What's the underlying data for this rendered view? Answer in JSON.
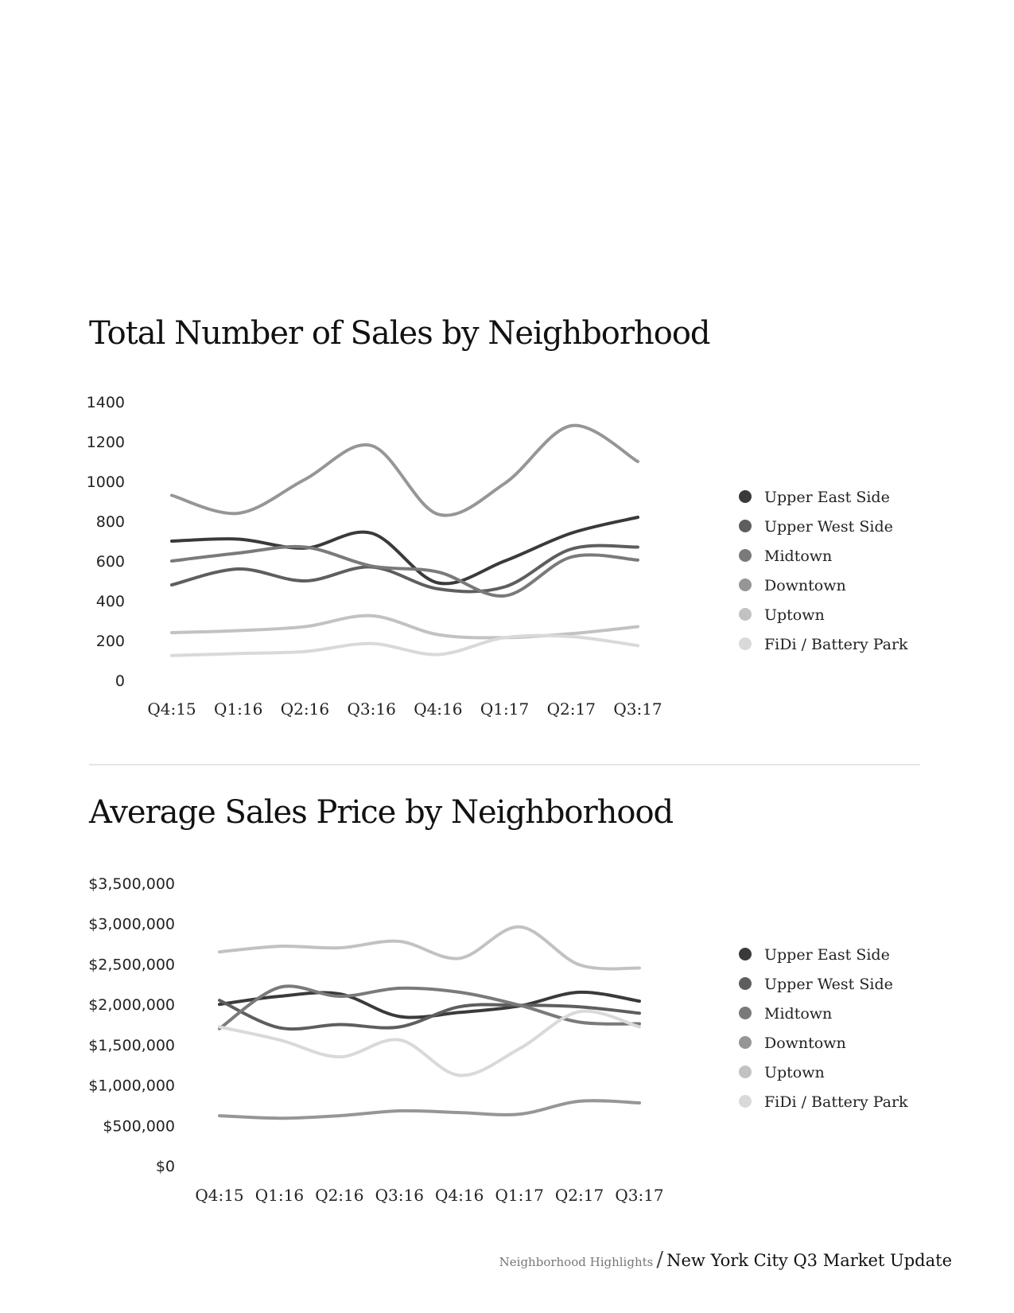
{
  "chart_data": [
    {
      "type": "line",
      "title": "Total Number of Sales by Neighborhood",
      "categories": [
        "Q4:15",
        "Q1:16",
        "Q2:16",
        "Q3:16",
        "Q4:16",
        "Q1:17",
        "Q2:17",
        "Q3:17"
      ],
      "ylim": [
        0,
        1400
      ],
      "yticks": [
        "0",
        "200",
        "400",
        "600",
        "800",
        "1000",
        "1200",
        "1400"
      ],
      "grid": false,
      "legend_position": "right",
      "series": [
        {
          "name": "Upper East Side",
          "color": "#3a3a3a",
          "values": [
            700,
            710,
            665,
            740,
            490,
            600,
            740,
            820
          ]
        },
        {
          "name": "Upper West Side",
          "color": "#5e5e5e",
          "values": [
            480,
            560,
            500,
            570,
            460,
            470,
            660,
            670
          ]
        },
        {
          "name": "Midtown",
          "color": "#7a7a7a",
          "values": [
            600,
            640,
            670,
            575,
            545,
            425,
            620,
            605
          ]
        },
        {
          "name": "Downtown",
          "color": "#969696",
          "values": [
            930,
            840,
            1010,
            1180,
            835,
            990,
            1280,
            1100
          ]
        },
        {
          "name": "Uptown",
          "color": "#c2c2c2",
          "values": [
            240,
            250,
            270,
            325,
            230,
            215,
            235,
            270
          ]
        },
        {
          "name": "FiDi / Battery Park",
          "color": "#d9d9d9",
          "values": [
            125,
            135,
            145,
            185,
            130,
            215,
            220,
            175
          ]
        }
      ]
    },
    {
      "type": "line",
      "title": "Average Sales Price by Neighborhood",
      "categories": [
        "Q4:15",
        "Q1:16",
        "Q2:16",
        "Q3:16",
        "Q4:16",
        "Q1:17",
        "Q2:17",
        "Q3:17"
      ],
      "ylim": [
        0,
        3500000
      ],
      "yticks": [
        "$0",
        "$500,000",
        "$1,000,000",
        "$1,500,000",
        "$2,000,000",
        "$2,500,000",
        "$3,000,000",
        "$3,500,000"
      ],
      "grid": false,
      "legend_position": "right",
      "series": [
        {
          "name": "Upper East Side",
          "color": "#3a3a3a",
          "values": [
            2000000,
            2100000,
            2130000,
            1850000,
            1900000,
            1980000,
            2150000,
            2040000
          ]
        },
        {
          "name": "Upper West Side",
          "color": "#5e5e5e",
          "values": [
            2050000,
            1710000,
            1750000,
            1720000,
            1970000,
            1990000,
            1970000,
            1890000
          ]
        },
        {
          "name": "Midtown",
          "color": "#7a7a7a",
          "values": [
            1700000,
            2210000,
            2100000,
            2200000,
            2150000,
            1990000,
            1780000,
            1760000
          ]
        },
        {
          "name": "Downtown",
          "color": "#969696",
          "values": [
            620000,
            590000,
            620000,
            680000,
            660000,
            640000,
            800000,
            780000
          ]
        },
        {
          "name": "Uptown",
          "color": "#c2c2c2",
          "values": [
            2650000,
            2720000,
            2700000,
            2780000,
            2570000,
            2960000,
            2490000,
            2450000
          ]
        },
        {
          "name": "FiDi / Battery Park",
          "color": "#d9d9d9",
          "values": [
            1720000,
            1560000,
            1350000,
            1560000,
            1120000,
            1450000,
            1910000,
            1720000
          ]
        }
      ]
    }
  ],
  "footer": {
    "section": "Neighborhood Highlights",
    "separator": "/",
    "title": "New York City Q3 Market Update"
  }
}
